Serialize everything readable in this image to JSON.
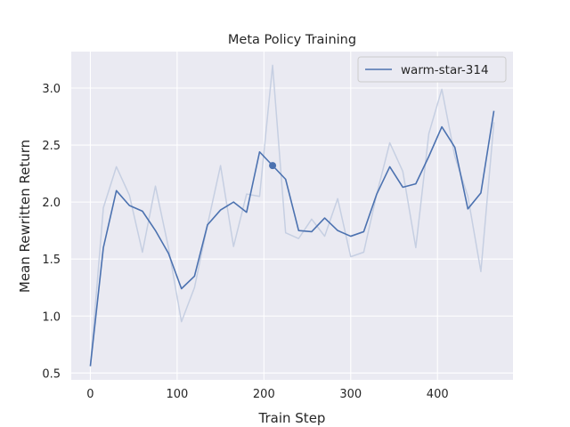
{
  "chart_data": {
    "type": "line",
    "title": "Meta Policy Training",
    "xlabel": "Train Step",
    "ylabel": "Mean Rewritten Return",
    "xlim": [
      -22,
      487
    ],
    "ylim": [
      0.44,
      3.32
    ],
    "xticks": [
      0,
      100,
      200,
      300,
      400
    ],
    "yticks": [
      0.5,
      1.0,
      1.5,
      2.0,
      2.5,
      3.0
    ],
    "xtick_labels": [
      "0",
      "100",
      "200",
      "300",
      "400"
    ],
    "ytick_labels": [
      "0.5",
      "1.0",
      "1.5",
      "2.0",
      "2.5",
      "3.0"
    ],
    "grid": true,
    "legend_position": "top-right",
    "x": [
      0,
      15,
      30,
      45,
      60,
      75,
      90,
      105,
      120,
      135,
      150,
      165,
      180,
      195,
      210,
      225,
      240,
      255,
      270,
      285,
      300,
      315,
      330,
      345,
      360,
      375,
      390,
      405,
      420,
      435,
      450,
      465
    ],
    "series": [
      {
        "name": "warm-star-314",
        "role": "smoothed",
        "color": "#4c72b0",
        "values": [
          0.56,
          1.6,
          2.1,
          1.97,
          1.92,
          1.75,
          1.55,
          1.24,
          1.35,
          1.8,
          1.93,
          2.0,
          1.91,
          2.44,
          2.32,
          2.2,
          1.75,
          1.74,
          1.86,
          1.75,
          1.7,
          1.74,
          2.07,
          2.31,
          2.13,
          2.16,
          2.4,
          2.66,
          2.48,
          1.94,
          2.08,
          2.8
        ]
      },
      {
        "role": "raw",
        "color": "#c6cfe2",
        "values": [
          0.56,
          1.95,
          2.31,
          2.06,
          1.56,
          2.14,
          1.6,
          0.95,
          1.25,
          1.8,
          2.32,
          1.61,
          2.07,
          2.05,
          3.2,
          1.73,
          1.68,
          1.85,
          1.7,
          2.03,
          1.52,
          1.56,
          2.07,
          2.52,
          2.27,
          1.6,
          2.6,
          2.99,
          2.4,
          2.05,
          1.39,
          2.7
        ]
      }
    ],
    "marker": {
      "x": 210,
      "y": 2.32
    }
  }
}
